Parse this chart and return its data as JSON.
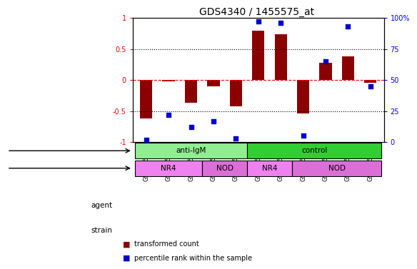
{
  "title": "GDS4340 / 1455575_at",
  "samples": [
    "GSM915690",
    "GSM915691",
    "GSM915692",
    "GSM915685",
    "GSM915686",
    "GSM915687",
    "GSM915688",
    "GSM915689",
    "GSM915682",
    "GSM915683",
    "GSM915684"
  ],
  "bar_values": [
    -0.62,
    -0.02,
    -0.37,
    -0.1,
    -0.42,
    0.79,
    0.74,
    -0.54,
    0.28,
    0.38,
    -0.04
  ],
  "dot_values": [
    2,
    22,
    12,
    17,
    3,
    97,
    96,
    5,
    65,
    93,
    45
  ],
  "bar_color": "#8B0000",
  "dot_color": "#0000CD",
  "ylim": [
    -1.0,
    1.0
  ],
  "y2lim": [
    0,
    100
  ],
  "yticks": [
    -1.0,
    -0.5,
    0.0,
    0.5,
    1.0
  ],
  "ytick_labels": [
    "-1",
    "-0.5",
    "0",
    "0.5",
    "1"
  ],
  "y2ticks": [
    0,
    25,
    50,
    75,
    100
  ],
  "y2tick_labels": [
    "0",
    "25",
    "50",
    "75",
    "100%"
  ],
  "hlines_dotted": [
    -0.5,
    0.5
  ],
  "hline_dashed_red": 0.0,
  "agent_labels": [
    {
      "label": "anti-IgM",
      "start": 0,
      "end": 5,
      "color": "#90EE90"
    },
    {
      "label": "control",
      "start": 5,
      "end": 11,
      "color": "#32CD32"
    }
  ],
  "strain_labels": [
    {
      "label": "NR4",
      "start": 0,
      "end": 3,
      "color": "#EE82EE"
    },
    {
      "label": "NOD",
      "start": 3,
      "end": 5,
      "color": "#DA70D6"
    },
    {
      "label": "NR4",
      "start": 5,
      "end": 7,
      "color": "#EE82EE"
    },
    {
      "label": "NOD",
      "start": 7,
      "end": 11,
      "color": "#DA70D6"
    }
  ],
  "row_labels": [
    "agent",
    "strain"
  ],
  "legend_items": [
    {
      "color": "#8B0000",
      "label": "transformed count"
    },
    {
      "color": "#0000CD",
      "label": "percentile rank within the sample"
    }
  ],
  "background_color": "#FFFFFF"
}
